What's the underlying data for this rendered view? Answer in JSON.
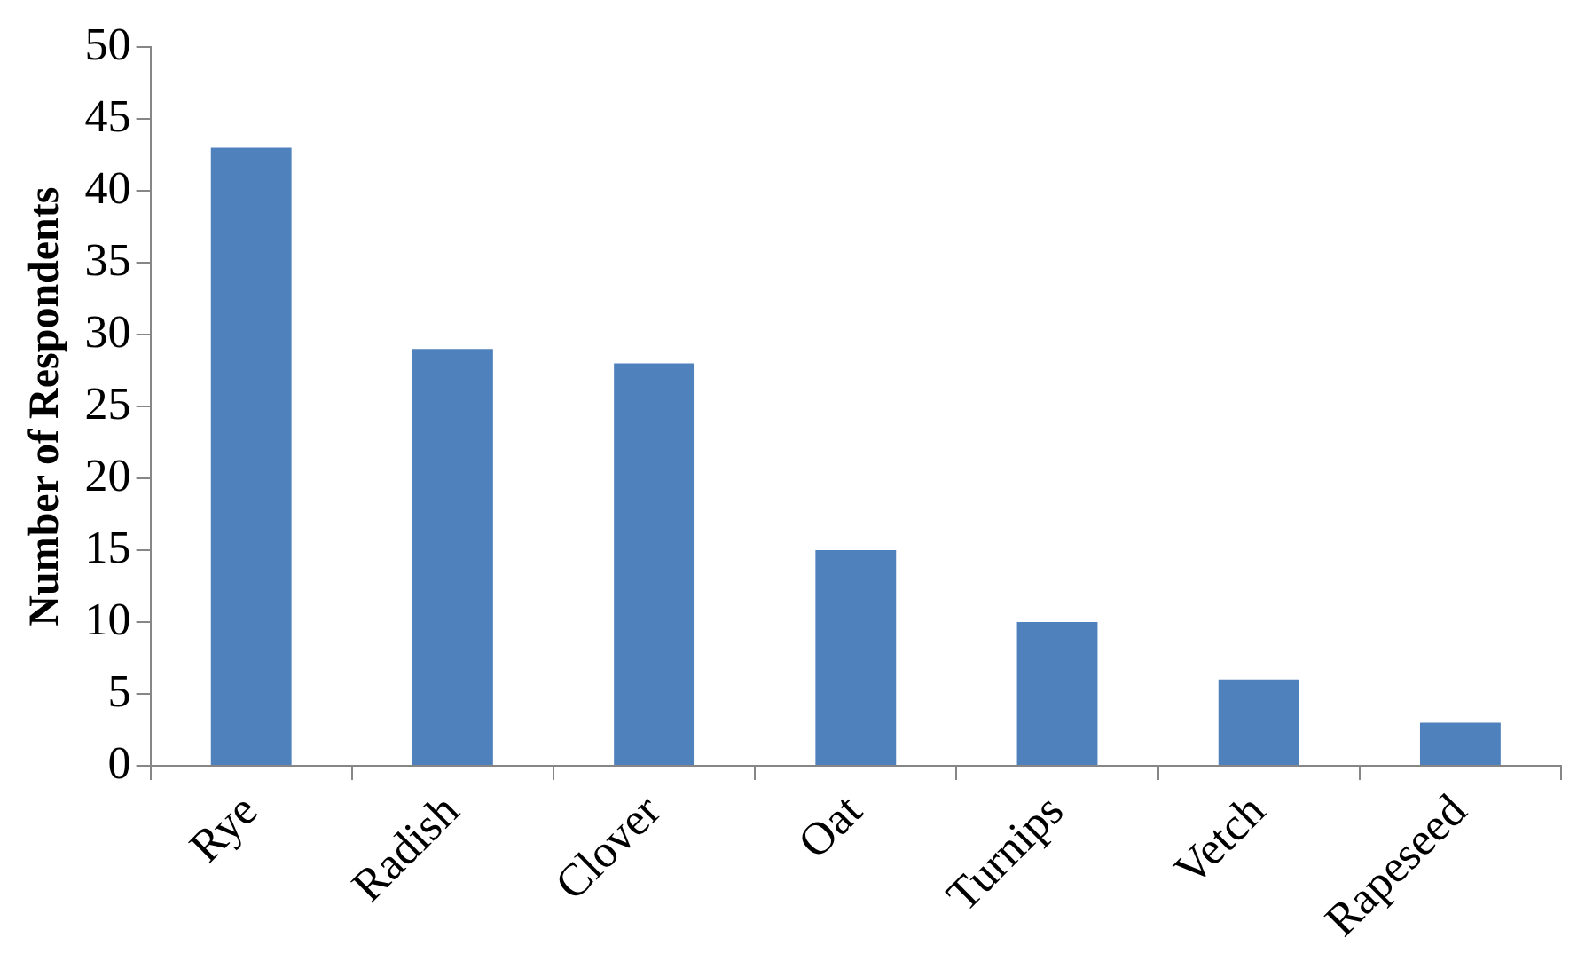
{
  "chart_data": {
    "type": "bar",
    "ylabel": "Number of Respondents",
    "categories": [
      "Rye",
      "Radish",
      "Clover",
      "Oat",
      "Turnips",
      "Vetch",
      "Rapeseed"
    ],
    "series": [
      {
        "color": "#4f81bd",
        "values": [
          43,
          29,
          28,
          15,
          10,
          6,
          3
        ]
      }
    ],
    "ylim": [
      0,
      50
    ],
    "yticks": [
      0,
      5,
      10,
      15,
      20,
      25,
      30,
      35,
      40,
      45,
      50
    ],
    "grid": false,
    "legend": false
  }
}
